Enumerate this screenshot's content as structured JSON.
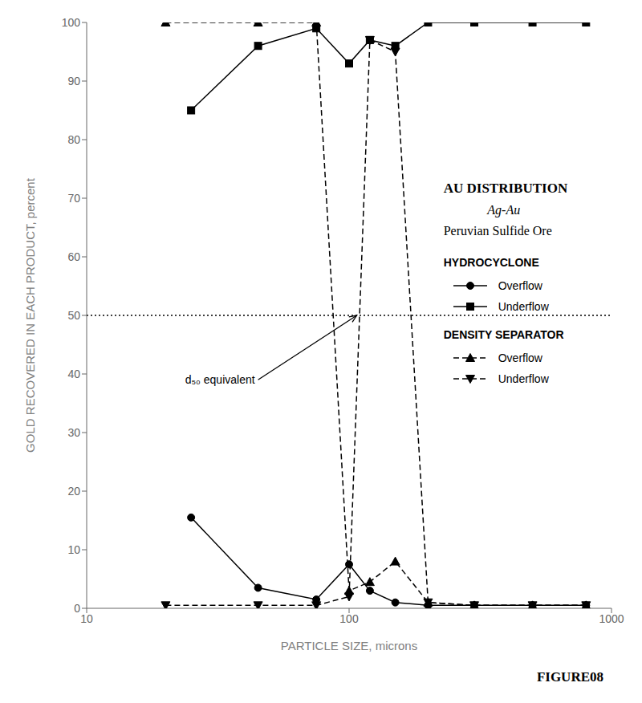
{
  "chart_data": {
    "type": "line",
    "title": "AU DISTRIBUTION",
    "subtitle": [
      "Ag-Au",
      "Peruvian Sulfide Ore"
    ],
    "xlabel": "PARTICLE SIZE, microns",
    "ylabel": "GOLD RECOVERED IN EACH PRODUCT, percent",
    "caption": "FIGURE08",
    "log": "x",
    "grid": false,
    "xlim": [
      10,
      1000
    ],
    "xticks": [
      10,
      100,
      1000
    ],
    "ylim": [
      0,
      100
    ],
    "yticks": [
      0,
      10,
      20,
      30,
      40,
      50,
      60,
      70,
      80,
      90,
      100
    ],
    "series": [
      {
        "name": "Overflow",
        "color": "#000000",
        "marker": "circle",
        "line_style": "solid",
        "x": [
          25,
          45,
          75,
          100,
          120,
          150,
          200,
          300,
          500,
          800
        ],
        "values": [
          15.5,
          3.5,
          1.5,
          7.5,
          3.0,
          1.0,
          0.5,
          0.5,
          0.5,
          0.5
        ]
      },
      {
        "name": "Underflow",
        "color": "#000000",
        "marker": "square",
        "line_style": "solid",
        "x": [
          25,
          45,
          75,
          100,
          120,
          150,
          200,
          300,
          500,
          800
        ],
        "values": [
          85,
          96,
          99,
          93,
          97,
          96,
          100,
          100,
          100,
          100
        ]
      },
      {
        "name": "Overflow",
        "color": "#000000",
        "marker": "triangle-up",
        "line_style": "dashed",
        "x": [
          20,
          45,
          75,
          100,
          120,
          150,
          200,
          300,
          500,
          800
        ],
        "values": [
          100,
          100,
          100,
          3.0,
          4.5,
          8.0,
          1.0,
          0.5,
          0.5,
          0.5
        ]
      },
      {
        "name": "Underflow",
        "color": "#000000",
        "marker": "triangle-down",
        "line_style": "dashed",
        "x": [
          20,
          45,
          75,
          100,
          120,
          150,
          200,
          300,
          500,
          800
        ],
        "values": [
          0.5,
          0.5,
          0.5,
          2.0,
          97,
          95,
          1.0,
          0.5,
          0.5,
          0.5
        ]
      }
    ],
    "reference_lines": [
      {
        "y": 50,
        "color": "#000000",
        "line_style": "dotted"
      }
    ],
    "annotations": [
      {
        "text": "HYDROCYCLONE"
      },
      {
        "text": "DENSITY SEPARATOR"
      },
      {
        "text": "d₅₀ equivalent",
        "x": 45,
        "y": 39,
        "arrow_to": [
          107,
          50
        ]
      }
    ]
  }
}
